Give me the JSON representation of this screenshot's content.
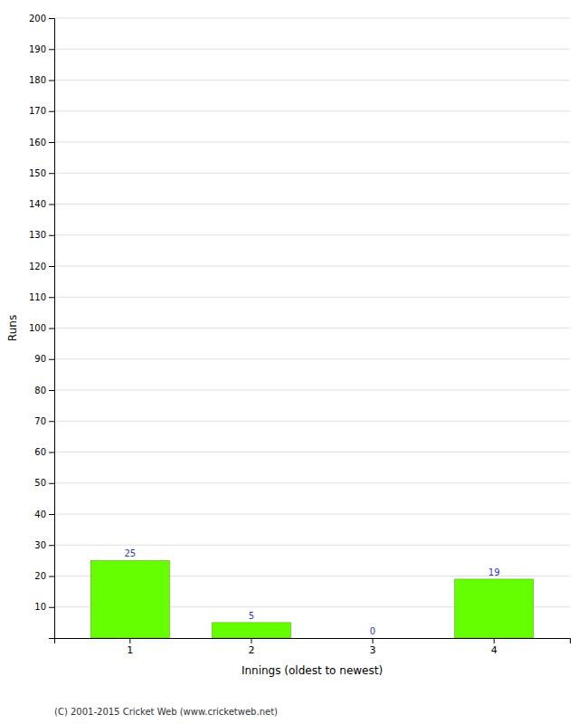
{
  "chart_data": {
    "type": "bar",
    "categories": [
      "1",
      "2",
      "3",
      "4"
    ],
    "values": [
      25,
      5,
      0,
      19
    ],
    "color": "#66ff00",
    "xlabel": "Innings (oldest to newest)",
    "ylabel": "Runs",
    "ylim": [
      0,
      200
    ],
    "yticks": [
      10,
      20,
      30,
      40,
      50,
      60,
      70,
      80,
      90,
      100,
      110,
      120,
      130,
      140,
      150,
      160,
      170,
      180,
      190,
      200
    ],
    "grid": true,
    "data_labels": true,
    "annotations": [
      "(C) 2001-2015 Cricket Web (www.cricketweb.net)"
    ]
  }
}
